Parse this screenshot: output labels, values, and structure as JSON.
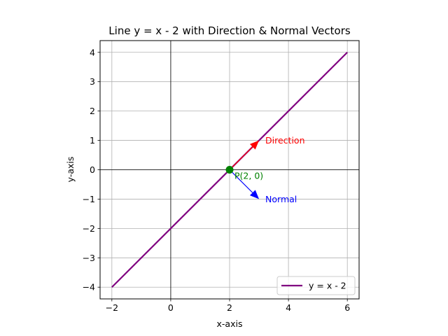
{
  "chart_data": {
    "type": "line",
    "title": "Line y = x - 2 with Direction & Normal Vectors",
    "xlabel": "x-axis",
    "ylabel": "y-axis",
    "xlim": [
      -2.4,
      6.4
    ],
    "ylim": [
      -4.4,
      4.4
    ],
    "xticks": [
      -2,
      0,
      2,
      4,
      6
    ],
    "yticks": [
      -4,
      -3,
      -2,
      -1,
      0,
      1,
      2,
      3,
      4
    ],
    "xtick_labels": [
      "−2",
      "0",
      "2",
      "4",
      "6"
    ],
    "ytick_labels": [
      "−4",
      "−3",
      "−2",
      "−1",
      "0",
      "1",
      "2",
      "3",
      "4"
    ],
    "grid": true,
    "series": [
      {
        "name": "y = x - 2",
        "color": "#800080",
        "x": [
          -2,
          6
        ],
        "y": [
          -4,
          4
        ]
      }
    ],
    "point": {
      "label": "P(2, 0)",
      "x": 2,
      "y": 0,
      "color": "#008000"
    },
    "vectors": [
      {
        "label": "Direction",
        "from": [
          2,
          0
        ],
        "to": [
          3,
          1
        ],
        "color": "#ff0000"
      },
      {
        "label": "Normal",
        "from": [
          2,
          0
        ],
        "to": [
          3,
          -1
        ],
        "color": "#0000ff"
      }
    ],
    "legend_position": "lower-right"
  }
}
